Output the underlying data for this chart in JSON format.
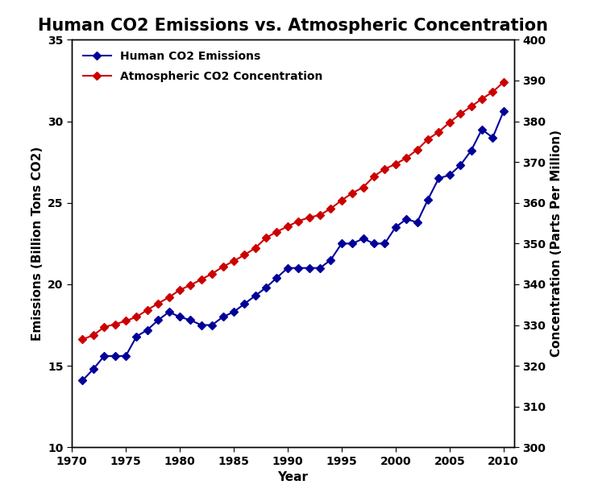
{
  "title": "Human CO2 Emissions vs. Atmospheric Concentration",
  "xlabel": "Year",
  "ylabel_left": "Emissions (Billion Tons CO2)",
  "ylabel_right": "Concentration (Parts Per Million)",
  "years": [
    1971,
    1972,
    1973,
    1974,
    1975,
    1976,
    1977,
    1978,
    1979,
    1980,
    1981,
    1982,
    1983,
    1984,
    1985,
    1986,
    1987,
    1988,
    1989,
    1990,
    1991,
    1992,
    1993,
    1994,
    1995,
    1996,
    1997,
    1998,
    1999,
    2000,
    2001,
    2002,
    2003,
    2004,
    2005,
    2006,
    2007,
    2008,
    2009,
    2010
  ],
  "emissions": [
    14.1,
    14.8,
    15.6,
    15.6,
    15.6,
    16.8,
    17.2,
    17.8,
    18.3,
    18.0,
    17.8,
    17.5,
    17.5,
    18.0,
    18.3,
    18.8,
    19.3,
    19.8,
    20.4,
    21.0,
    21.0,
    21.0,
    21.0,
    21.5,
    22.5,
    22.5,
    22.8,
    22.5,
    22.5,
    23.5,
    24.0,
    23.8,
    25.2,
    26.5,
    26.7,
    27.3,
    28.2,
    29.5,
    29.0,
    30.6
  ],
  "co2_concentration": [
    326.5,
    327.5,
    329.5,
    330.2,
    331.0,
    332.0,
    333.7,
    335.3,
    336.8,
    338.6,
    339.8,
    341.2,
    342.6,
    344.3,
    345.7,
    347.2,
    348.9,
    351.4,
    352.9,
    354.2,
    355.5,
    356.4,
    357.0,
    358.6,
    360.6,
    362.4,
    363.8,
    366.5,
    368.3,
    369.5,
    371.0,
    373.0,
    375.6,
    377.4,
    379.7,
    381.8,
    383.6,
    385.5,
    387.2,
    389.6
  ],
  "emissions_color": "#000099",
  "co2_color": "#cc0000",
  "xlim": [
    1970,
    2011
  ],
  "ylim_left": [
    10,
    35
  ],
  "ylim_right": [
    300,
    400
  ],
  "xticks": [
    1970,
    1975,
    1980,
    1985,
    1990,
    1995,
    2000,
    2005,
    2010
  ],
  "yticks_left": [
    10,
    15,
    20,
    25,
    30,
    35
  ],
  "yticks_right": [
    300,
    310,
    320,
    330,
    340,
    350,
    360,
    370,
    380,
    390,
    400
  ],
  "legend_emissions": "Human CO2 Emissions",
  "legend_co2": "Atmospheric CO2 Concentration",
  "marker": "D",
  "markersize": 5,
  "linewidth": 1.5,
  "title_fontsize": 15,
  "label_fontsize": 11,
  "tick_fontsize": 10,
  "legend_fontsize": 10
}
